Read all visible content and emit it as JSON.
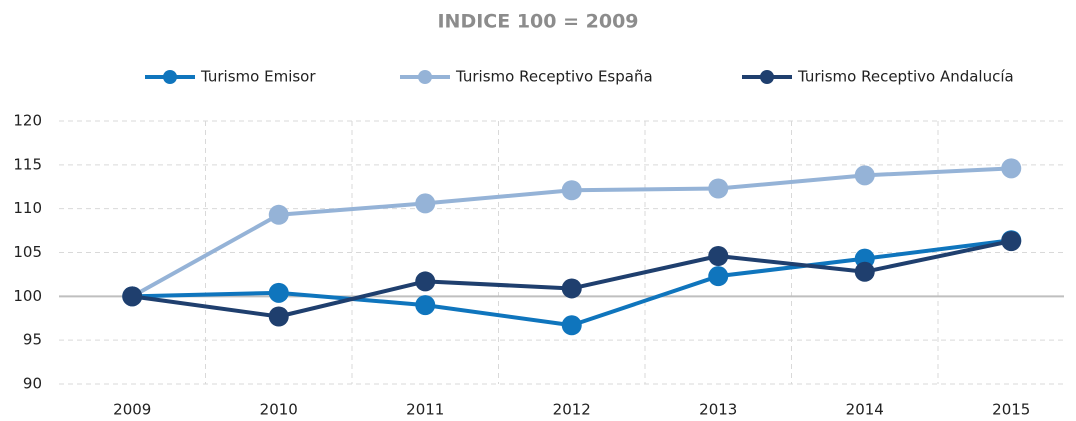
{
  "chart_data": {
    "type": "line",
    "title": "INDICE 100 = 2009",
    "categories": [
      "2009",
      "2010",
      "2011",
      "2012",
      "2013",
      "2014",
      "2015"
    ],
    "series": [
      {
        "name": "Turismo Emisor",
        "color": "#0f75bd",
        "values": [
          100,
          100.4,
          99.0,
          96.7,
          102.3,
          104.3,
          106.4
        ]
      },
      {
        "name": "Turismo Receptivo España",
        "color": "#95b3d7",
        "values": [
          100,
          109.3,
          110.6,
          112.1,
          112.3,
          113.8,
          114.6
        ]
      },
      {
        "name": "Turismo Receptivo Andalucía",
        "color": "#1f3f6e",
        "values": [
          100,
          97.7,
          101.7,
          100.9,
          104.6,
          102.8,
          106.3
        ]
      }
    ],
    "ylim": [
      90,
      120
    ],
    "yticks": [
      90,
      95,
      100,
      105,
      110,
      115,
      120
    ],
    "grid": true,
    "hline": 100,
    "legend": "top"
  }
}
